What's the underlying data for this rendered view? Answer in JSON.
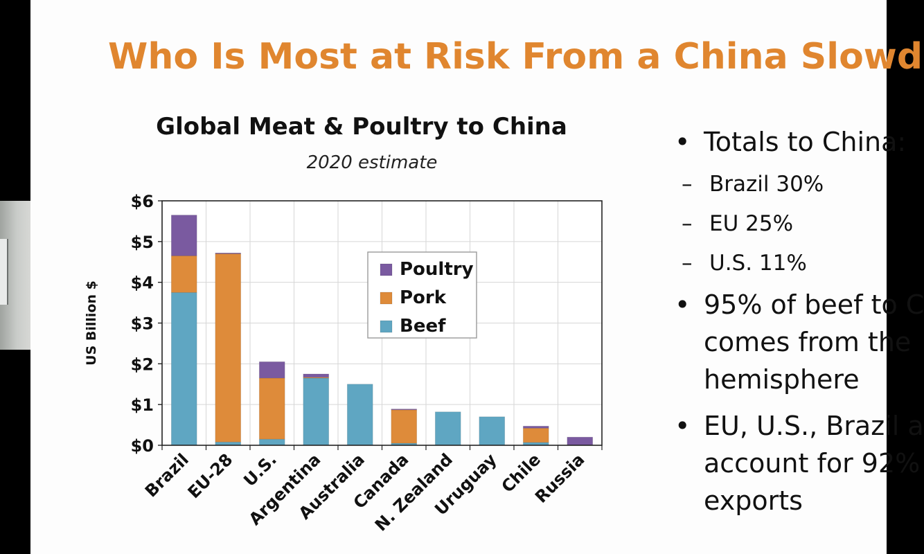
{
  "slide": {
    "title": "Who Is Most at Risk From a China Slowd"
  },
  "colors": {
    "title": "#e0862f",
    "poultry": "#7a5aa0",
    "pork": "#de8b3a",
    "beef": "#5fa6c2"
  },
  "chart_data": {
    "type": "bar",
    "stacked": true,
    "title": "Global Meat & Poultry to China",
    "subtitle": "2020 estimate",
    "xlabel": "",
    "ylabel": "US Billion $",
    "categories": [
      "Brazil",
      "EU-28",
      "U.S.",
      "Argentina",
      "Australia",
      "Canada",
      "N. Zealand",
      "Uruguay",
      "Chile",
      "Russia"
    ],
    "series": [
      {
        "name": "Beef",
        "values": [
          3.75,
          0.08,
          0.15,
          1.65,
          1.5,
          0.05,
          0.82,
          0.7,
          0.07,
          0.0
        ]
      },
      {
        "name": "Pork",
        "values": [
          0.9,
          4.62,
          1.5,
          0.02,
          0.0,
          0.82,
          0.0,
          0.0,
          0.35,
          0.0
        ]
      },
      {
        "name": "Poultry",
        "values": [
          1.0,
          0.02,
          0.4,
          0.08,
          0.0,
          0.02,
          0.0,
          0.0,
          0.05,
          0.2
        ]
      }
    ],
    "legend_order": [
      "Poultry",
      "Pork",
      "Beef"
    ],
    "ylim": [
      0,
      6
    ],
    "yticks": [
      "$0",
      "$1",
      "$2",
      "$3",
      "$4",
      "$5",
      "$6"
    ],
    "grid": true,
    "legend_position": "center-right"
  },
  "bullets": {
    "b1": "Totals to China:",
    "b1_sub1": "Brazil 30%",
    "b1_sub2": "EU 25%",
    "b1_sub3": "U.S. 11%",
    "b2_line1": "95% of beef to C",
    "b2_line2": "comes from the",
    "b2_line3": "hemisphere",
    "b3_line1": "EU, U.S., Brazil a",
    "b3_line2": "account for 92%",
    "b3_line3": "exports"
  }
}
